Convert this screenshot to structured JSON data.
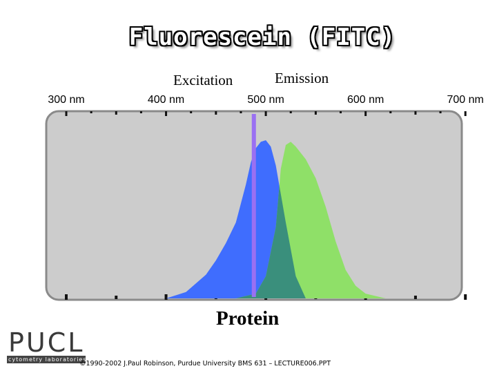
{
  "slide": {
    "title": "Fluorescein (FITC)",
    "excitation_label": "Excitation",
    "emission_label": "Emission",
    "protein_label": "Protein",
    "footer": "©1990-2002 J.Paul Robinson, Purdue University  BMS 631 – LECTURE006.PPT"
  },
  "logo": {
    "word": "PUCL",
    "subtitle": "cytometry laboratories"
  },
  "chart_data": {
    "type": "area",
    "title": "Fluorescein (FITC)",
    "x_unit": "nm",
    "xlim": [
      300,
      700
    ],
    "ylim": [
      0,
      1
    ],
    "x_ticks": [
      "300 nm",
      "400 nm",
      "500 nm",
      "600 nm",
      "700 nm"
    ],
    "x_tick_values": [
      300,
      400,
      500,
      600,
      700
    ],
    "grid": false,
    "colors": {
      "plot_background": "#cccccc",
      "excitation": "#3f6dfe",
      "emission": "#8fe068",
      "overlap": "#3a8f7c",
      "laser_line": "#9a70f2"
    },
    "laser_line_nm": 488,
    "series": [
      {
        "name": "Excitation",
        "x": [
          400,
          420,
          440,
          450,
          460,
          470,
          480,
          485,
          490,
          495,
          500,
          505,
          510,
          520,
          530,
          540
        ],
        "y": [
          0.0,
          0.04,
          0.15,
          0.24,
          0.35,
          0.48,
          0.72,
          0.86,
          0.95,
          0.99,
          1.0,
          0.96,
          0.84,
          0.48,
          0.14,
          0.0
        ]
      },
      {
        "name": "Emission",
        "x": [
          470,
          490,
          500,
          510,
          515,
          520,
          525,
          530,
          540,
          550,
          560,
          570,
          580,
          590,
          600,
          620
        ],
        "y": [
          0.0,
          0.03,
          0.14,
          0.45,
          0.82,
          0.97,
          0.99,
          0.96,
          0.88,
          0.76,
          0.58,
          0.36,
          0.18,
          0.08,
          0.03,
          0.0
        ]
      }
    ]
  }
}
